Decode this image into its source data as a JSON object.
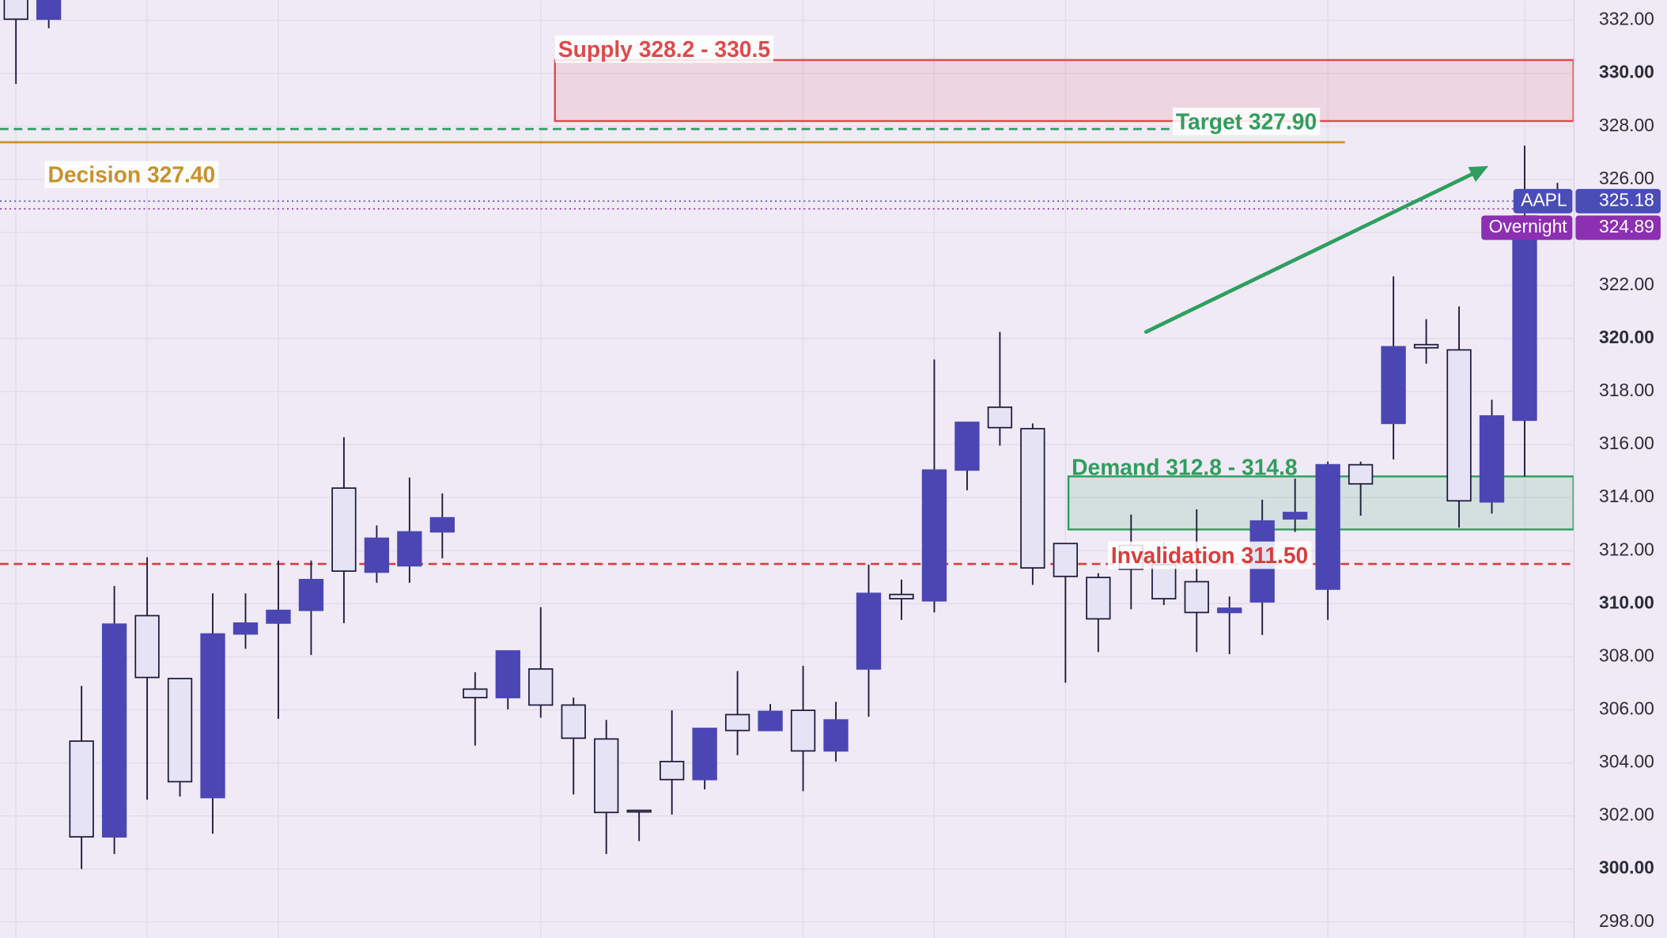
{
  "chart_data": {
    "type": "candlestick",
    "ylim": [
      297.4,
      332.76
    ],
    "yticks": [
      {
        "value": 298,
        "label": "298.00"
      },
      {
        "value": 300,
        "label": "300.00"
      },
      {
        "value": 302,
        "label": "302.00"
      },
      {
        "value": 304,
        "label": "304.00"
      },
      {
        "value": 306,
        "label": "306.00"
      },
      {
        "value": 308,
        "label": "308.00"
      },
      {
        "value": 310,
        "label": "310.00"
      },
      {
        "value": 312,
        "label": "312.00"
      },
      {
        "value": 314,
        "label": "314.00"
      },
      {
        "value": 316,
        "label": "316.00"
      },
      {
        "value": 318,
        "label": "318.00"
      },
      {
        "value": 320,
        "label": "320.00"
      },
      {
        "value": 322,
        "label": "322.00"
      },
      {
        "value": 324,
        "label": "324.00"
      },
      {
        "value": 326,
        "label": "326.00"
      },
      {
        "value": 328,
        "label": "328.00"
      },
      {
        "value": 330,
        "label": "330.00"
      },
      {
        "value": 332,
        "label": "332.00"
      }
    ],
    "grid": true,
    "up_color": "#4b46b3",
    "down_color": "#e6e3f4",
    "open": [
      333.2,
      332.04,
      304.82,
      301.21,
      309.55,
      307.18,
      302.69,
      308.86,
      309.27,
      309.75,
      314.36,
      311.19,
      311.43,
      312.71,
      306.78,
      306.46,
      307.54,
      306.18,
      304.9,
      302.21,
      304.05,
      303.37,
      305.82,
      305.22,
      305.98,
      304.45,
      307.54,
      310.35,
      310.11,
      315.04,
      317.41,
      316.6,
      312.27,
      310.99,
      312.2,
      311.47,
      310.83,
      309.67,
      310.07,
      313.2,
      310.55,
      315.24,
      316.8,
      319.77,
      319.57,
      313.84,
      316.92,
      325.2
    ],
    "high": [
      333.5,
      333.5,
      306.9,
      310.67,
      311.75,
      307.2,
      310.39,
      310.39,
      311.63,
      311.63,
      316.28,
      312.95,
      314.76,
      314.16,
      307.42,
      308.22,
      309.87,
      306.46,
      305.62,
      302.21,
      305.98,
      305.3,
      307.46,
      306.22,
      307.66,
      306.3,
      311.47,
      310.91,
      319.21,
      316.84,
      320.25,
      316.8,
      312.27,
      311.15,
      313.36,
      312.31,
      313.56,
      310.27,
      313.92,
      314.72,
      315.36,
      315.36,
      322.34,
      320.73,
      321.21,
      317.69,
      327.27,
      325.87
    ],
    "low": [
      329.6,
      331.7,
      300.0,
      300.56,
      302.61,
      302.73,
      301.33,
      308.3,
      305.66,
      308.07,
      309.27,
      310.79,
      310.79,
      311.71,
      304.65,
      306.02,
      305.7,
      302.81,
      300.56,
      301.05,
      302.05,
      303.0,
      304.29,
      305.22,
      302.93,
      304.05,
      305.74,
      309.39,
      309.67,
      314.28,
      315.96,
      310.71,
      307.02,
      308.18,
      309.79,
      309.95,
      308.18,
      308.1,
      308.82,
      312.71,
      309.39,
      313.32,
      315.44,
      319.05,
      312.87,
      313.4,
      314.8,
      325.1
    ],
    "close": [
      332.04,
      333.3,
      301.21,
      309.23,
      307.22,
      303.29,
      308.86,
      309.27,
      309.75,
      310.91,
      311.23,
      312.47,
      312.71,
      313.24,
      306.46,
      308.22,
      306.18,
      304.93,
      302.13,
      302.17,
      303.37,
      305.3,
      305.22,
      305.94,
      304.45,
      305.62,
      310.39,
      310.19,
      315.04,
      316.84,
      316.64,
      311.35,
      311.03,
      309.43,
      311.3,
      310.19,
      309.67,
      309.83,
      313.12,
      313.44,
      315.24,
      314.52,
      319.69,
      319.65,
      313.88,
      317.08,
      324.62,
      325.18
    ],
    "zones": [
      {
        "label": "Supply 328.2 - 330.5",
        "low": 328.2,
        "high": 330.5,
        "color": "#e04a4a"
      },
      {
        "label": "Demand 312.8 - 314.8",
        "low": 312.8,
        "high": 314.8,
        "color": "#2f9e5e"
      }
    ],
    "levels": [
      {
        "label": "Target 327.90",
        "value": 327.9,
        "color": "#2f9e5e",
        "style": "dashed"
      },
      {
        "label": "Decision 327.40",
        "value": 327.4,
        "color": "#c8922c",
        "style": "solid"
      },
      {
        "label": "Invalidation 311.50",
        "value": 311.5,
        "color": "#d93d3d",
        "style": "dashed"
      }
    ],
    "price_tags": [
      {
        "name": "AAPL",
        "value": 325.18,
        "color": "#4a4cb8"
      },
      {
        "name": "Overnight",
        "value": 324.89,
        "color": "#8d2fb2"
      }
    ]
  }
}
